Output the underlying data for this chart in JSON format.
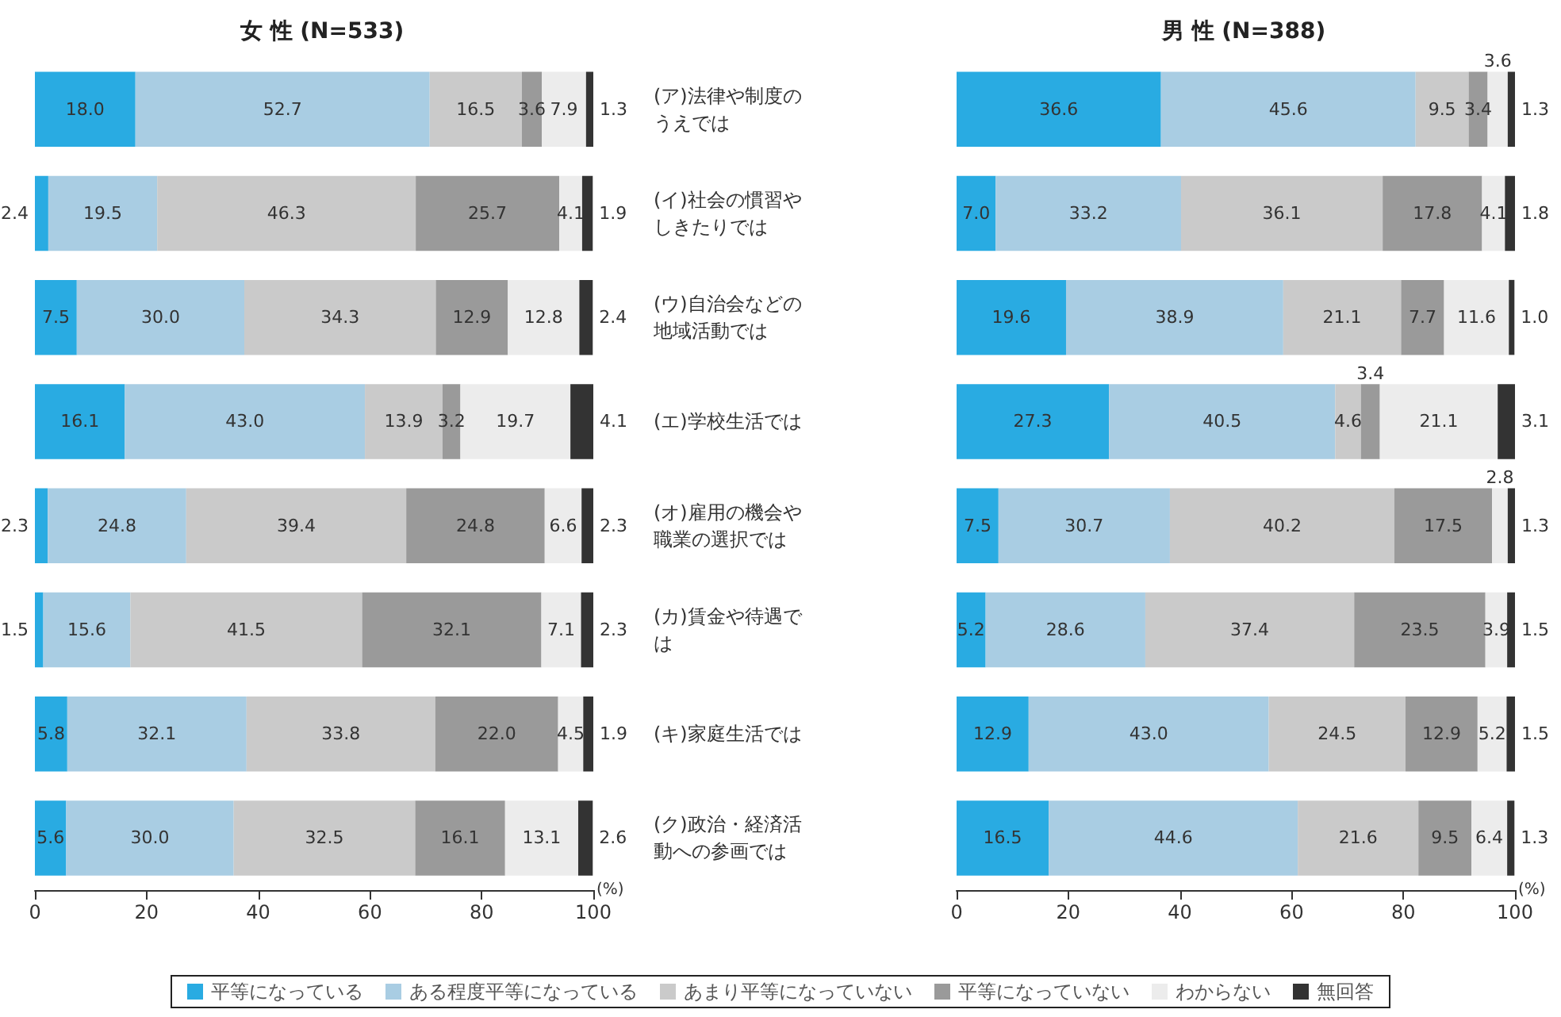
{
  "chart_data": [
    {
      "type": "bar",
      "orientation": "horizontal",
      "stacked": true,
      "title": "女 性 (N=533)",
      "xlabel": "(%)",
      "xlim": [
        0,
        100
      ],
      "xticks": [
        0,
        20,
        40,
        60,
        80,
        100
      ],
      "grid": false,
      "legend": "bottom",
      "categories": [
        "(ア)法律や制度のうえでは",
        "(イ)社会の慣習やしきたりでは",
        "(ウ)自治会などの地域活動では",
        "(エ)学校生活では",
        "(オ)雇用の機会や職業の選択では",
        "(カ)賃金や待遇では",
        "(キ)家庭生活では",
        "(ク)政治・経済活動への参画では"
      ],
      "series": [
        {
          "name": "平等になっている",
          "color": "#29abe2",
          "values": [
            18.0,
            2.4,
            7.5,
            16.1,
            2.3,
            1.5,
            5.8,
            5.6
          ],
          "value_labels": [
            "18.0",
            "2.4",
            "7.5",
            "16.1",
            "2.3",
            "1.5",
            "5.8",
            "5.6"
          ]
        },
        {
          "name": "ある程度平等になっている",
          "color": "#a9cde3",
          "values": [
            52.7,
            19.5,
            30.0,
            43.0,
            24.8,
            15.6,
            32.1,
            30.0
          ],
          "value_labels": [
            "52.7",
            "19.5",
            "30.0",
            "43.0",
            "24.8",
            "15.6",
            "32.1",
            "30.0"
          ]
        },
        {
          "name": "あまり平等になっていない",
          "color": "#cacaca",
          "values": [
            16.5,
            46.3,
            34.3,
            13.9,
            39.4,
            41.5,
            33.8,
            32.5
          ],
          "value_labels": [
            "16.5",
            "46.3",
            "34.3",
            "13.9",
            "39.4",
            "41.5",
            "33.8",
            "32.5"
          ]
        },
        {
          "name": "平等になっていない",
          "color": "#9a9a9a",
          "values": [
            3.6,
            25.7,
            12.9,
            3.2,
            24.8,
            32.1,
            22.0,
            16.1
          ],
          "value_labels": [
            "3.6",
            "25.7",
            "12.9",
            "3.2",
            "24.8",
            "32.1",
            "22.0",
            "16.1"
          ]
        },
        {
          "name": "わからない",
          "color": "#ececec",
          "values": [
            7.9,
            4.1,
            12.8,
            19.7,
            6.6,
            7.1,
            4.5,
            13.1
          ],
          "value_labels": [
            "7.9",
            "4.1",
            "12.8",
            "19.7",
            "6.6",
            "7.1",
            "4.5",
            "13.1"
          ]
        },
        {
          "name": "無回答",
          "color": "#333333",
          "values": [
            1.3,
            1.9,
            2.4,
            4.1,
            2.3,
            2.3,
            1.9,
            2.6
          ],
          "value_labels": [
            "1.3",
            "1.9",
            "2.4",
            "4.1",
            "2.3",
            "2.3",
            "1.9",
            "2.6"
          ]
        }
      ]
    },
    {
      "type": "bar",
      "orientation": "horizontal",
      "stacked": true,
      "title": "男 性 (N=388)",
      "xlabel": "(%)",
      "xlim": [
        0,
        100
      ],
      "xticks": [
        0,
        20,
        40,
        60,
        80,
        100
      ],
      "grid": false,
      "legend": false,
      "tick_labels": "x",
      "categories": [
        "(ア)法律や制度のうえでは",
        "(イ)社会の慣習やしきたりでは",
        "(ウ)自治会などの地域活動では",
        "(エ)学校生活では",
        "(オ)雇用の機会や職業の選択では",
        "(カ)賃金や待遇では",
        "(キ)家庭生活では",
        "(ク)政治・経済活動への参画では"
      ],
      "series": [
        {
          "color": "#29abe2",
          "values": [
            36.6,
            7.0,
            19.6,
            27.3,
            7.5,
            5.2,
            12.9,
            16.5
          ],
          "value_labels": [
            "36.6",
            "7.0",
            "19.6",
            "27.3",
            "7.5",
            "5.2",
            "12.9",
            "16.5"
          ]
        },
        {
          "color": "#a9cde3",
          "values": [
            45.6,
            33.2,
            38.9,
            40.5,
            30.7,
            28.6,
            43.0,
            44.6
          ],
          "value_labels": [
            "45.6",
            "33.2",
            "38.9",
            "40.5",
            "30.7",
            "28.6",
            "43.0",
            "44.6"
          ]
        },
        {
          "color": "#cacaca",
          "values": [
            9.5,
            36.1,
            21.1,
            4.6,
            40.2,
            37.4,
            24.5,
            21.6
          ],
          "value_labels": [
            "9.5",
            "36.1",
            "21.1",
            "4.6",
            "40.2",
            "37.4",
            "24.5",
            "21.6"
          ]
        },
        {
          "color": "#9a9a9a",
          "values": [
            3.4,
            17.8,
            7.7,
            3.4,
            17.5,
            23.5,
            12.9,
            9.5
          ],
          "value_labels": [
            "3.4",
            "17.8",
            "7.7",
            "3.4",
            "17.5",
            "23.5",
            "12.9",
            "9.5"
          ]
        },
        {
          "color": "#ececec",
          "values": [
            3.6,
            4.1,
            11.6,
            21.1,
            2.8,
            3.9,
            5.2,
            6.4
          ],
          "value_labels": [
            "3.6",
            "4.1",
            "11.6",
            "21.1",
            "2.8",
            "3.9",
            "5.2",
            "6.4"
          ]
        },
        {
          "color": "#333333",
          "values": [
            1.3,
            1.8,
            1.0,
            3.1,
            1.3,
            1.5,
            1.5,
            1.3
          ],
          "value_labels": [
            "1.3",
            "1.8",
            "1.0",
            "3.1",
            "1.3",
            "1.5",
            "1.5",
            "1.3"
          ]
        }
      ]
    }
  ]
}
